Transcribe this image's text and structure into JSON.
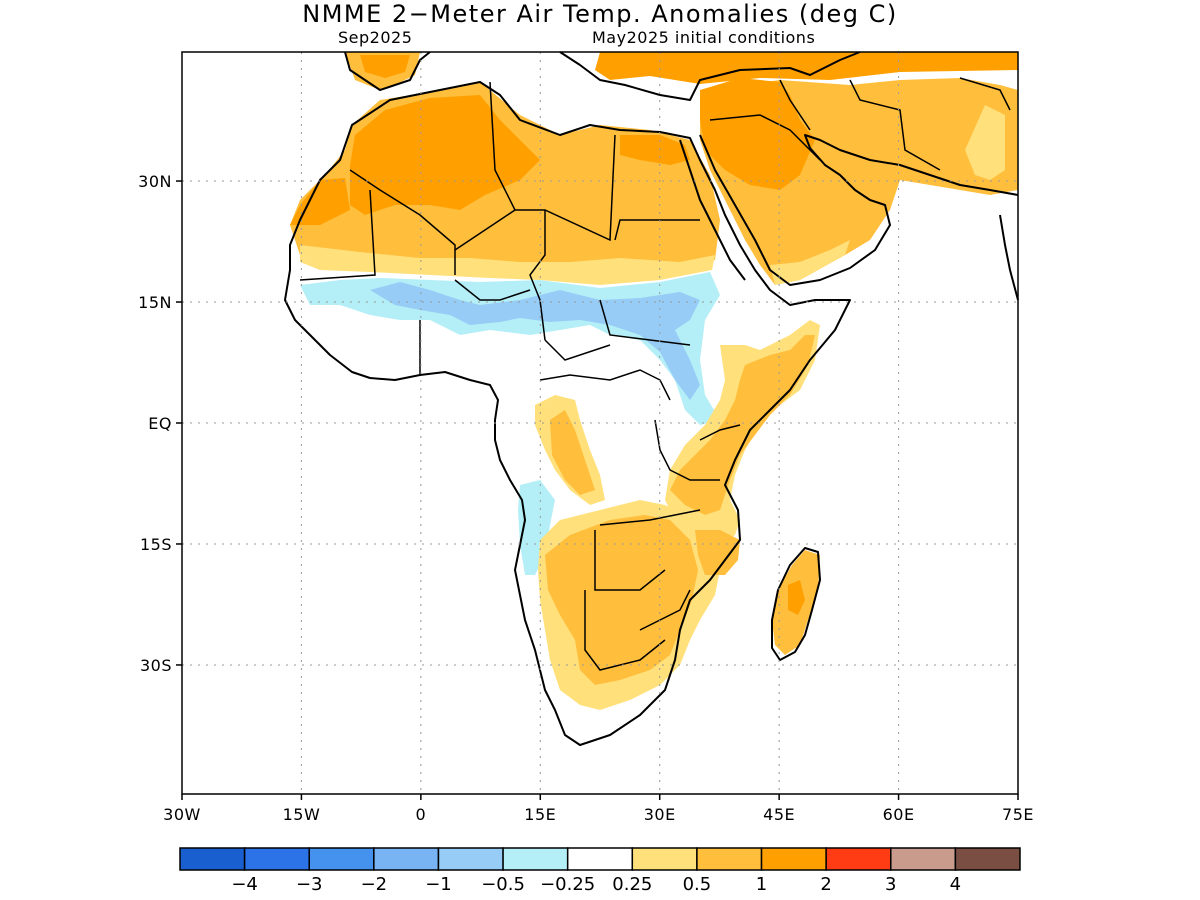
{
  "title": "NMME 2−Meter Air Temp. Anomalies (deg C)",
  "subtitle_left": "Sep2025",
  "subtitle_right": "May2025 initial conditions",
  "map": {
    "lon_range": [
      -30,
      75
    ],
    "lat_range": [
      -46,
      46
    ],
    "lat_ticks": [
      {
        "value": 30,
        "label": "30N"
      },
      {
        "value": 15,
        "label": "15N"
      },
      {
        "value": 0,
        "label": "EQ"
      },
      {
        "value": -15,
        "label": "15S"
      },
      {
        "value": -30,
        "label": "30S"
      }
    ],
    "lon_ticks": [
      {
        "value": -30,
        "label": "30W"
      },
      {
        "value": -15,
        "label": "15W"
      },
      {
        "value": 0,
        "label": "0"
      },
      {
        "value": 15,
        "label": "15E"
      },
      {
        "value": 30,
        "label": "30E"
      },
      {
        "value": 45,
        "label": "45E"
      },
      {
        "value": 60,
        "label": "60E"
      },
      {
        "value": 75,
        "label": "75E"
      }
    ],
    "gridlines": "dotted"
  },
  "colorbar": {
    "colors": [
      "#1a5fcf",
      "#2b73e6",
      "#4492ee",
      "#78b4f3",
      "#96ccf5",
      "#b4eff7",
      "#ffffff",
      "#ffe07a",
      "#ffbe3c",
      "#ffa000",
      "#ff3c14",
      "#c89b8c",
      "#7a4e43"
    ],
    "labels": [
      "−4",
      "−3",
      "−2",
      "−1",
      "−0.5",
      "−0.25",
      "0.25",
      "0.5",
      "1",
      "2",
      "3",
      "4"
    ]
  }
}
